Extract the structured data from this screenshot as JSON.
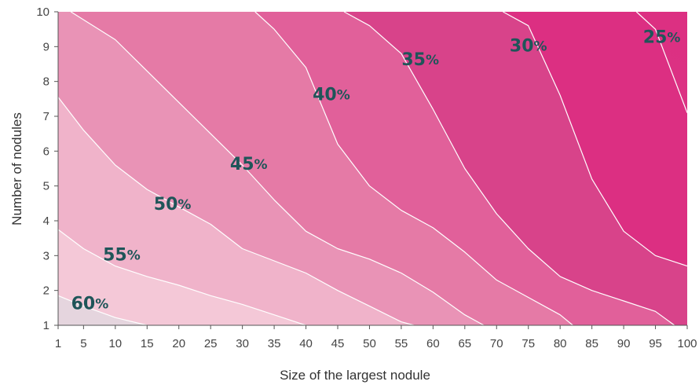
{
  "chart_data": {
    "type": "contour",
    "xlabel": "Size of the largest nodule",
    "ylabel": "Number of nodules",
    "x_ticks": [
      "1",
      "5",
      "10",
      "15",
      "20",
      "25",
      "30",
      "35",
      "40",
      "45",
      "50",
      "55",
      "60",
      "65",
      "70",
      "75",
      "80",
      "85",
      "90",
      "95",
      "100"
    ],
    "y_ticks": [
      "1",
      "2",
      "3",
      "4",
      "5",
      "6",
      "7",
      "8",
      "9",
      "10"
    ],
    "xlim": [
      1,
      100
    ],
    "ylim": [
      1,
      10
    ],
    "grid": false,
    "region_colors": [
      "#e5d5de",
      "#f4c8d7",
      "#f0b3ca",
      "#e993b6",
      "#e57aa6",
      "#e1609a",
      "#d8438a",
      "#dc2f82"
    ],
    "contours": [
      {
        "level": "60",
        "unit": "%",
        "label_at": [
          6,
          1.6
        ],
        "points": [
          [
            1,
            1.85
          ],
          [
            5,
            1.55
          ],
          [
            10,
            1.22
          ],
          [
            15,
            1.0
          ]
        ]
      },
      {
        "level": "55",
        "unit": "%",
        "label_at": [
          11,
          3.0
        ],
        "points": [
          [
            1,
            3.75
          ],
          [
            5,
            3.2
          ],
          [
            10,
            2.7
          ],
          [
            15,
            2.4
          ],
          [
            20,
            2.15
          ],
          [
            25,
            1.85
          ],
          [
            30,
            1.6
          ],
          [
            35,
            1.3
          ],
          [
            40,
            1.0
          ]
        ]
      },
      {
        "level": "50",
        "unit": "%",
        "label_at": [
          19,
          4.45
        ],
        "points": [
          [
            1,
            7.55
          ],
          [
            5,
            6.6
          ],
          [
            10,
            5.6
          ],
          [
            15,
            4.9
          ],
          [
            20,
            4.4
          ],
          [
            25,
            3.9
          ],
          [
            30,
            3.2
          ],
          [
            35,
            2.85
          ],
          [
            40,
            2.5
          ],
          [
            45,
            2.0
          ],
          [
            50,
            1.55
          ],
          [
            55,
            1.1
          ],
          [
            57,
            1.0
          ]
        ]
      },
      {
        "level": "45",
        "unit": "%",
        "label_at": [
          31,
          5.6
        ],
        "points": [
          [
            3,
            10
          ],
          [
            10,
            9.2
          ],
          [
            15,
            8.3
          ],
          [
            20,
            7.4
          ],
          [
            25,
            6.5
          ],
          [
            30,
            5.6
          ],
          [
            35,
            4.6
          ],
          [
            40,
            3.7
          ],
          [
            45,
            3.2
          ],
          [
            50,
            2.9
          ],
          [
            55,
            2.5
          ],
          [
            60,
            1.95
          ],
          [
            65,
            1.3
          ],
          [
            68,
            1.0
          ]
        ]
      },
      {
        "level": "40",
        "unit": "%",
        "label_at": [
          44,
          7.6
        ],
        "points": [
          [
            32,
            10
          ],
          [
            35,
            9.5
          ],
          [
            40,
            8.4
          ],
          [
            45,
            6.2
          ],
          [
            50,
            5.0
          ],
          [
            55,
            4.3
          ],
          [
            60,
            3.8
          ],
          [
            65,
            3.1
          ],
          [
            70,
            2.3
          ],
          [
            75,
            1.8
          ],
          [
            80,
            1.3
          ],
          [
            82,
            1.0
          ]
        ]
      },
      {
        "level": "35",
        "unit": "%",
        "label_at": [
          58,
          8.6
        ],
        "points": [
          [
            46,
            10
          ],
          [
            50,
            9.6
          ],
          [
            55,
            8.8
          ],
          [
            60,
            7.2
          ],
          [
            65,
            5.5
          ],
          [
            70,
            4.2
          ],
          [
            75,
            3.2
          ],
          [
            80,
            2.4
          ],
          [
            85,
            2.0
          ],
          [
            90,
            1.7
          ],
          [
            95,
            1.4
          ],
          [
            98,
            1.0
          ]
        ]
      },
      {
        "level": "30",
        "unit": "%",
        "label_at": [
          75,
          9.0
        ],
        "points": [
          [
            71,
            10
          ],
          [
            75,
            9.6
          ],
          [
            80,
            7.6
          ],
          [
            85,
            5.2
          ],
          [
            90,
            3.7
          ],
          [
            95,
            3.0
          ],
          [
            100,
            2.7
          ]
        ]
      },
      {
        "level": "25",
        "unit": "%",
        "label_at": [
          96,
          9.25
        ],
        "points": [
          [
            92,
            10
          ],
          [
            95,
            9.5
          ],
          [
            100,
            7.1
          ]
        ]
      }
    ]
  }
}
